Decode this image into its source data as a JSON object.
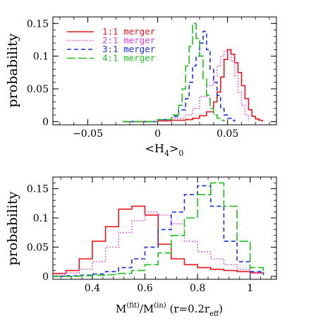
{
  "chart_data": [
    {
      "type": "line",
      "ylabel": "probability",
      "xlabel": "<H4>0",
      "xlim": [
        -0.075,
        0.085
      ],
      "ylim": [
        -0.005,
        0.16
      ],
      "xticks": [
        "−0.05",
        "0",
        "0.05"
      ],
      "xtick_values": [
        -0.05,
        0,
        0.05
      ],
      "yticks": [
        "0",
        "0.05",
        "0.1",
        "0.15"
      ],
      "ytick_values": [
        0,
        0.05,
        0.1,
        0.15
      ],
      "legend_position": "top-left",
      "series": [
        {
          "name": "1:1 merger",
          "color": "#e8141e",
          "dash": "solid",
          "x": [
            -0.025,
            0.0,
            0.01,
            0.02,
            0.025,
            0.03,
            0.035,
            0.04,
            0.0425,
            0.045,
            0.0475,
            0.05,
            0.0525,
            0.055,
            0.0575,
            0.06,
            0.0625,
            0.065,
            0.0675,
            0.07,
            0.0725,
            0.075
          ],
          "values": [
            0.0,
            0.001,
            0.002,
            0.003,
            0.005,
            0.009,
            0.015,
            0.03,
            0.045,
            0.068,
            0.095,
            0.11,
            0.103,
            0.09,
            0.075,
            0.055,
            0.035,
            0.018,
            0.008,
            0.004,
            0.002,
            0.0
          ]
        },
        {
          "name": "2:1 merger",
          "color": "#e040e0",
          "dash": "dotted",
          "x": [
            -0.02,
            0.0,
            0.01,
            0.02,
            0.025,
            0.03,
            0.035,
            0.04,
            0.0425,
            0.045,
            0.0475,
            0.05,
            0.0525,
            0.055,
            0.0575,
            0.06,
            0.0625,
            0.065
          ],
          "values": [
            0.0,
            0.002,
            0.005,
            0.01,
            0.02,
            0.038,
            0.055,
            0.07,
            0.085,
            0.1,
            0.108,
            0.106,
            0.092,
            0.07,
            0.045,
            0.025,
            0.01,
            0.0
          ]
        },
        {
          "name": "3:1 merger",
          "color": "#1f2fe8",
          "dash": "dashed",
          "x": [
            -0.02,
            0.0,
            0.01,
            0.015,
            0.02,
            0.0225,
            0.025,
            0.0275,
            0.03,
            0.0325,
            0.035,
            0.0375,
            0.04,
            0.0425,
            0.045,
            0.0475,
            0.05,
            0.0525,
            0.055
          ],
          "values": [
            0.0,
            0.003,
            0.008,
            0.018,
            0.035,
            0.06,
            0.085,
            0.1,
            0.12,
            0.138,
            0.11,
            0.08,
            0.06,
            0.04,
            0.02,
            0.01,
            0.005,
            0.002,
            0.0
          ]
        },
        {
          "name": "4:1 merger",
          "color": "#1fbf1f",
          "dash": "longdash",
          "x": [
            -0.025,
            0.0,
            0.01,
            0.015,
            0.0175,
            0.02,
            0.0225,
            0.025,
            0.0275,
            0.03,
            0.0325,
            0.035,
            0.0375,
            0.04,
            0.0425,
            0.045,
            0.0475
          ],
          "values": [
            0.0,
            0.003,
            0.01,
            0.025,
            0.05,
            0.085,
            0.115,
            0.15,
            0.127,
            0.1,
            0.065,
            0.04,
            0.02,
            0.01,
            0.005,
            0.002,
            0.0
          ]
        }
      ]
    },
    {
      "type": "line",
      "ylabel": "probability",
      "xlabel": "M(fit)/M(in) (r=0.2reff)",
      "xlim": [
        0.25,
        1.1
      ],
      "ylim": [
        -0.005,
        0.17
      ],
      "xticks": [
        "0.4",
        "0.6",
        "0.8",
        "1"
      ],
      "xtick_values": [
        0.4,
        0.6,
        0.8,
        1.0
      ],
      "yticks": [
        "0",
        "0.05",
        "0.1",
        "0.15"
      ],
      "ytick_values": [
        0,
        0.05,
        0.1,
        0.15
      ],
      "series": [
        {
          "name": "1:1 merger",
          "color": "#e8141e",
          "dash": "solid",
          "x": [
            0.25,
            0.3,
            0.35,
            0.4,
            0.45,
            0.5,
            0.55,
            0.6,
            0.65,
            0.7,
            0.75,
            0.8,
            0.85,
            0.9,
            0.95,
            1.0,
            1.05
          ],
          "values": [
            0.005,
            0.01,
            0.03,
            0.06,
            0.085,
            0.115,
            0.12,
            0.105,
            0.055,
            0.03,
            0.02,
            0.015,
            0.012,
            0.01,
            0.008,
            0.006,
            0.005
          ]
        },
        {
          "name": "2:1 merger",
          "color": "#e040e0",
          "dash": "dotted",
          "x": [
            0.25,
            0.3,
            0.35,
            0.4,
            0.45,
            0.5,
            0.55,
            0.6,
            0.65,
            0.7,
            0.75,
            0.8,
            0.85,
            0.9,
            0.95,
            1.0,
            1.05
          ],
          "values": [
            0.002,
            0.006,
            0.012,
            0.025,
            0.05,
            0.075,
            0.095,
            0.11,
            0.105,
            0.09,
            0.06,
            0.042,
            0.03,
            0.02,
            0.012,
            0.006,
            0.003
          ]
        },
        {
          "name": "3:1 merger",
          "color": "#1f2fe8",
          "dash": "dashed",
          "x": [
            0.25,
            0.3,
            0.35,
            0.4,
            0.45,
            0.5,
            0.55,
            0.6,
            0.65,
            0.7,
            0.75,
            0.8,
            0.85,
            0.9,
            0.95,
            1.0,
            1.05
          ],
          "values": [
            0.0,
            0.001,
            0.002,
            0.004,
            0.008,
            0.015,
            0.03,
            0.05,
            0.08,
            0.11,
            0.14,
            0.155,
            0.12,
            0.06,
            0.025,
            0.008,
            0.002
          ]
        },
        {
          "name": "4:1 merger",
          "color": "#1fbf1f",
          "dash": "longdash",
          "x": [
            0.25,
            0.3,
            0.35,
            0.4,
            0.45,
            0.5,
            0.55,
            0.6,
            0.65,
            0.7,
            0.75,
            0.8,
            0.85,
            0.9,
            0.95,
            1.0,
            1.05
          ],
          "values": [
            0.0,
            0.0,
            0.001,
            0.002,
            0.003,
            0.005,
            0.01,
            0.02,
            0.04,
            0.07,
            0.1,
            0.14,
            0.16,
            0.12,
            0.06,
            0.015,
            0.003
          ]
        }
      ]
    }
  ]
}
